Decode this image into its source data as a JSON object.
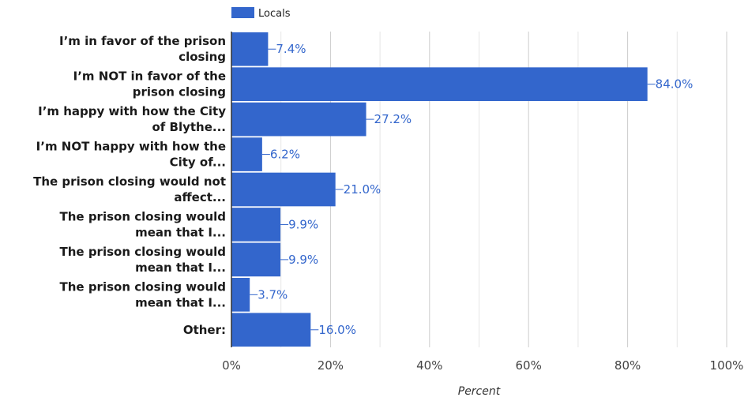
{
  "chart_data": {
    "type": "bar",
    "orientation": "horizontal",
    "categories": [
      [
        "I’m in favor of the prison",
        "closing"
      ],
      [
        "I’m NOT in favor of the",
        "prison closing"
      ],
      [
        "I’m happy with how the City",
        "of Blythe..."
      ],
      [
        "I’m NOT happy with how the",
        "City of..."
      ],
      [
        "The prison closing would not",
        "affect..."
      ],
      [
        "The prison closing would",
        "mean that I..."
      ],
      [
        "The prison closing would",
        "mean that I..."
      ],
      [
        "The prison closing would",
        "mean that I..."
      ],
      [
        "Other:"
      ]
    ],
    "series": [
      {
        "name": "Locals",
        "values": [
          7.4,
          84.0,
          27.2,
          6.2,
          21.0,
          9.9,
          9.9,
          3.7,
          16.0
        ],
        "labels": [
          "7.4%",
          "84.0%",
          "27.2%",
          "6.2%",
          "21.0%",
          "9.9%",
          "9.9%",
          "3.7%",
          "16.0%"
        ]
      }
    ],
    "xlabel": "Percent",
    "xlim": [
      0,
      100
    ],
    "xticks": [
      "0%",
      "20%",
      "40%",
      "60%",
      "80%",
      "100%"
    ],
    "grid": true,
    "legend_position": "top",
    "colors": {
      "bar": "#3366cc",
      "label": "#3366cc",
      "grid": "#cccccc",
      "axis": "#333333"
    }
  }
}
